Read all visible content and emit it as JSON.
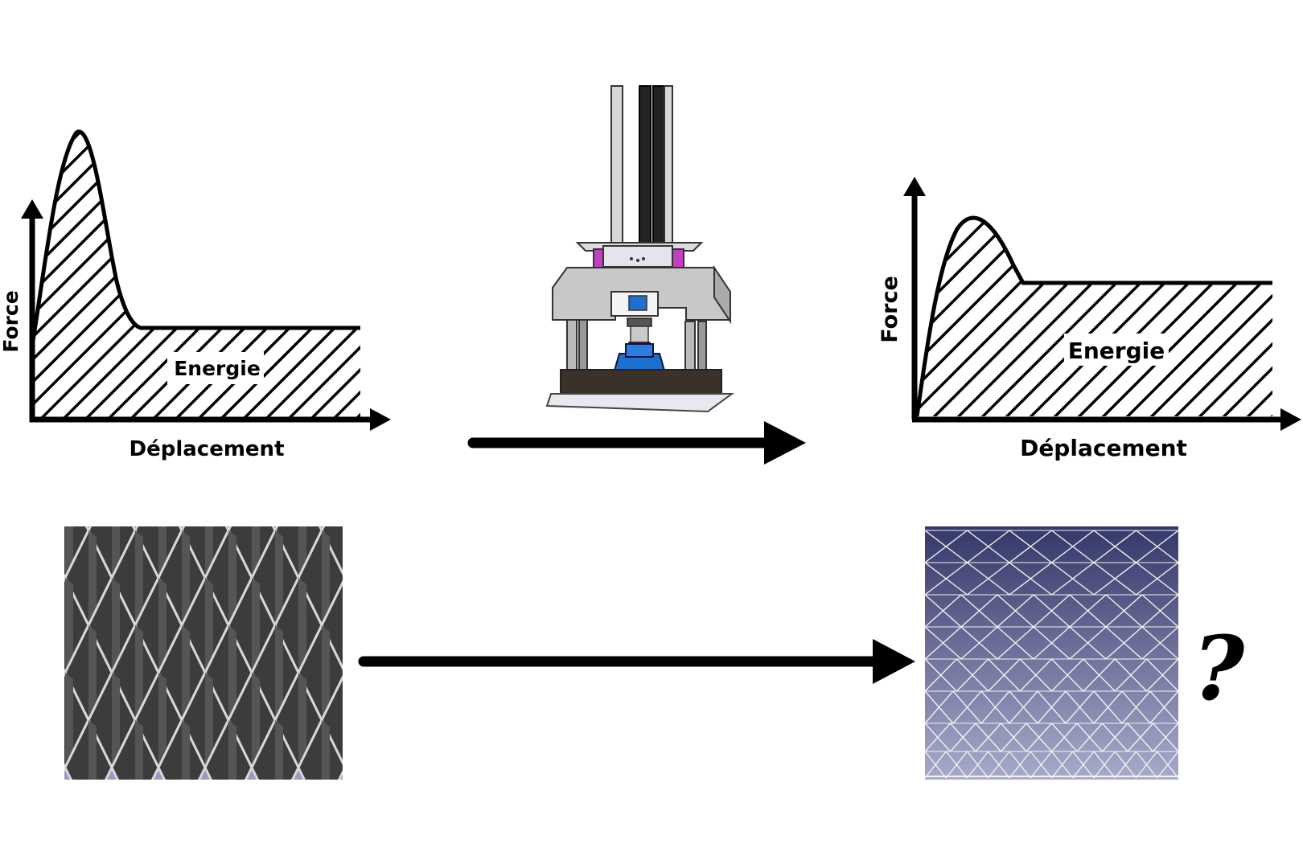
{
  "graph_left": {
    "y_axis_label": "Force",
    "x_axis_label": "Déplacement",
    "area_label": "Energie"
  },
  "graph_right": {
    "y_axis_label": "Force",
    "x_axis_label": "Déplacement",
    "area_label": "Energie"
  },
  "unknown_result_mark": "?",
  "colors": {
    "ink": "#000000",
    "render_bg_top": "#3b3f70",
    "render_bg_bottom": "#9a9cc0",
    "machine_grey": "#c9c9c9",
    "machine_blue": "#1f6fd0",
    "machine_magenta": "#c040c0"
  },
  "icons": {
    "test_machine": "drop-weight-test-machine-icon",
    "lattice_cad": "lattice-structure-render",
    "graded_lattice_cad": "graded-lattice-structure-render"
  }
}
